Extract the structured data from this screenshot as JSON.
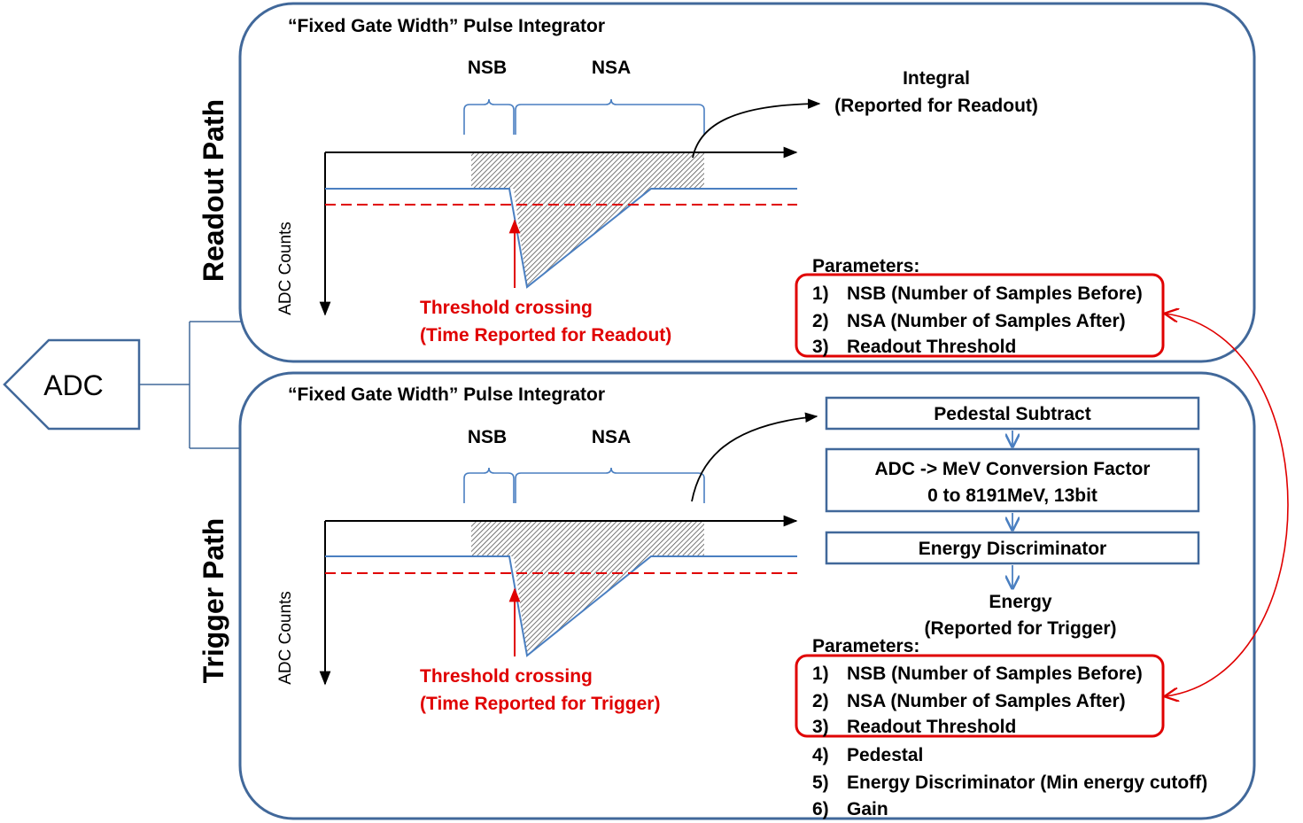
{
  "adc": {
    "label": "ADC"
  },
  "readout": {
    "path_label": "Readout Path",
    "panel_title": "“Fixed Gate Width” Pulse Integrator",
    "nsb": "NSB",
    "nsa": "NSA",
    "y_axis_label": "ADC Counts",
    "integral_line1": "Integral",
    "integral_line2": "(Reported for Readout)",
    "threshold_line1": "Threshold crossing",
    "threshold_line2": "(Time Reported for Readout)",
    "params_title": "Parameters:",
    "params": [
      {
        "num": "1)",
        "text": "NSB (Number of Samples Before)"
      },
      {
        "num": "2)",
        "text": "NSA (Number of Samples After)"
      },
      {
        "num": "3)",
        "text": "Readout Threshold"
      }
    ]
  },
  "trigger": {
    "path_label": "Trigger Path",
    "panel_title": "“Fixed Gate Width” Pulse Integrator",
    "nsb": "NSB",
    "nsa": "NSA",
    "y_axis_label": "ADC Counts",
    "threshold_line1": "Threshold crossing",
    "threshold_line2": "(Time Reported for Trigger)",
    "blocks": {
      "pedestal_subtract": "Pedestal Subtract",
      "conversion_line1": "ADC -> MeV Conversion Factor",
      "conversion_line2": "0 to 8191MeV, 13bit",
      "energy_discriminator": "Energy Discriminator"
    },
    "energy_line1": "Energy",
    "energy_line2": "(Reported for Trigger)",
    "params_title": "Parameters:",
    "params": [
      {
        "num": "1)",
        "text": "NSB (Number of Samples Before)"
      },
      {
        "num": "2)",
        "text": "NSA (Number of Samples After)"
      },
      {
        "num": "3)",
        "text": "Readout Threshold"
      },
      {
        "num": "4)",
        "text": "Pedestal"
      },
      {
        "num": "5)",
        "text": "Energy Discriminator (Min energy cutoff)"
      },
      {
        "num": "6)",
        "text": "Gain"
      }
    ]
  },
  "colors": {
    "frame": "#41689a",
    "line_blue": "#4a7fc1",
    "red": "#e00000"
  }
}
